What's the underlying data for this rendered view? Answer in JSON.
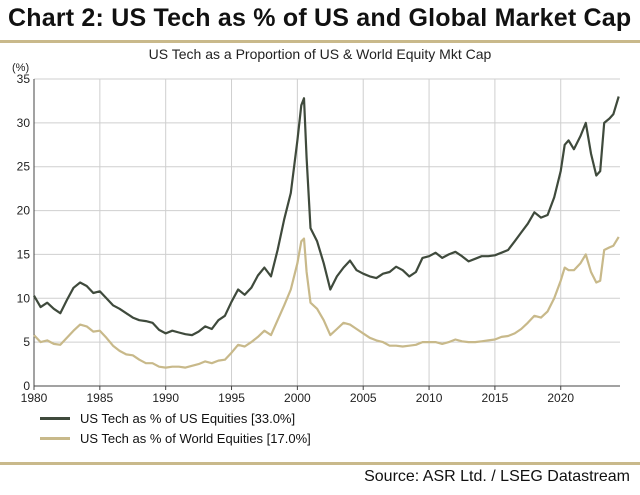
{
  "header": {
    "title": "Chart 2: US Tech as % of US and Global Market Cap",
    "subtitle": "US Tech as a Proportion of US & World Equity Mkt Cap",
    "source": "Source: ASR Ltd.  / LSEG Datastream"
  },
  "colors": {
    "us": "#3f4a3c",
    "world": "#c8b98a",
    "rule": "#c9b98b"
  },
  "chart_data": {
    "type": "line",
    "title": "US Tech as a Proportion of US & World Equity Mkt Cap",
    "ylabel": "(%)",
    "xlim": [
      1980,
      2024.5
    ],
    "ylim": [
      0,
      35
    ],
    "xticks": [
      1980,
      1985,
      1990,
      1995,
      2000,
      2005,
      2010,
      2015,
      2020
    ],
    "yticks": [
      0,
      5,
      10,
      15,
      20,
      25,
      30,
      35
    ],
    "grid": true,
    "legend": "bottom-left",
    "series": [
      {
        "name": "US Tech as % of US Equities [33.0%]",
        "x": [
          1980.0,
          1980.5,
          1981.0,
          1981.5,
          1982.0,
          1982.5,
          1983.0,
          1983.5,
          1984.0,
          1984.5,
          1985.0,
          1985.5,
          1986.0,
          1986.5,
          1987.0,
          1987.5,
          1988.0,
          1988.5,
          1989.0,
          1989.5,
          1990.0,
          1990.5,
          1991.0,
          1991.5,
          1992.0,
          1992.5,
          1993.0,
          1993.5,
          1994.0,
          1994.5,
          1995.0,
          1995.5,
          1996.0,
          1996.5,
          1997.0,
          1997.5,
          1998.0,
          1998.5,
          1999.0,
          1999.5,
          2000.0,
          2000.3,
          2000.5,
          2000.7,
          2001.0,
          2001.5,
          2002.0,
          2002.5,
          2003.0,
          2003.5,
          2004.0,
          2004.5,
          2005.0,
          2005.5,
          2006.0,
          2006.5,
          2007.0,
          2007.5,
          2008.0,
          2008.5,
          2009.0,
          2009.5,
          2010.0,
          2010.5,
          2011.0,
          2011.5,
          2012.0,
          2012.5,
          2013.0,
          2013.5,
          2014.0,
          2014.5,
          2015.0,
          2015.5,
          2016.0,
          2016.5,
          2017.0,
          2017.5,
          2018.0,
          2018.5,
          2019.0,
          2019.5,
          2020.0,
          2020.3,
          2020.6,
          2021.0,
          2021.5,
          2021.9,
          2022.3,
          2022.7,
          2023.0,
          2023.3,
          2023.7,
          2024.0,
          2024.4
        ],
        "values": [
          10.3,
          9.0,
          9.5,
          8.8,
          8.3,
          9.8,
          11.2,
          11.8,
          11.4,
          10.6,
          10.8,
          10.0,
          9.2,
          8.8,
          8.3,
          7.8,
          7.5,
          7.4,
          7.2,
          6.4,
          6.0,
          6.3,
          6.1,
          5.9,
          5.8,
          6.2,
          6.8,
          6.5,
          7.5,
          8.0,
          9.6,
          11.0,
          10.4,
          11.2,
          12.6,
          13.5,
          12.5,
          15.5,
          19.0,
          22.0,
          28.0,
          32.0,
          32.8,
          26.0,
          18.0,
          16.5,
          14.0,
          11.0,
          12.5,
          13.5,
          14.3,
          13.2,
          12.8,
          12.5,
          12.3,
          12.8,
          13.0,
          13.6,
          13.2,
          12.5,
          13.0,
          14.6,
          14.8,
          15.2,
          14.6,
          15.0,
          15.3,
          14.8,
          14.2,
          14.5,
          14.8,
          14.8,
          14.9,
          15.2,
          15.5,
          16.5,
          17.5,
          18.5,
          19.8,
          19.2,
          19.5,
          21.5,
          24.5,
          27.5,
          28.0,
          27.0,
          28.5,
          30.0,
          26.5,
          24.0,
          24.5,
          30.0,
          30.5,
          31.0,
          33.0
        ]
      },
      {
        "name": "US Tech as % of World Equities [17.0%]",
        "x": [
          1980.0,
          1980.5,
          1981.0,
          1981.5,
          1982.0,
          1982.5,
          1983.0,
          1983.5,
          1984.0,
          1984.5,
          1985.0,
          1985.5,
          1986.0,
          1986.5,
          1987.0,
          1987.5,
          1988.0,
          1988.5,
          1989.0,
          1989.5,
          1990.0,
          1990.5,
          1991.0,
          1991.5,
          1992.0,
          1992.5,
          1993.0,
          1993.5,
          1994.0,
          1994.5,
          1995.0,
          1995.5,
          1996.0,
          1996.5,
          1997.0,
          1997.5,
          1998.0,
          1998.5,
          1999.0,
          1999.5,
          2000.0,
          2000.3,
          2000.5,
          2000.7,
          2001.0,
          2001.5,
          2002.0,
          2002.5,
          2003.0,
          2003.5,
          2004.0,
          2004.5,
          2005.0,
          2005.5,
          2006.0,
          2006.5,
          2007.0,
          2007.5,
          2008.0,
          2008.5,
          2009.0,
          2009.5,
          2010.0,
          2010.5,
          2011.0,
          2011.5,
          2012.0,
          2012.5,
          2013.0,
          2013.5,
          2014.0,
          2014.5,
          2015.0,
          2015.5,
          2016.0,
          2016.5,
          2017.0,
          2017.5,
          2018.0,
          2018.5,
          2019.0,
          2019.5,
          2020.0,
          2020.3,
          2020.6,
          2021.0,
          2021.5,
          2021.9,
          2022.3,
          2022.7,
          2023.0,
          2023.3,
          2023.7,
          2024.0,
          2024.4
        ],
        "values": [
          5.8,
          5.0,
          5.2,
          4.8,
          4.7,
          5.5,
          6.3,
          7.0,
          6.8,
          6.2,
          6.3,
          5.5,
          4.6,
          4.0,
          3.6,
          3.5,
          3.0,
          2.6,
          2.6,
          2.2,
          2.1,
          2.2,
          2.2,
          2.1,
          2.3,
          2.5,
          2.8,
          2.6,
          2.9,
          3.0,
          3.8,
          4.7,
          4.5,
          5.0,
          5.6,
          6.3,
          5.8,
          7.5,
          9.2,
          11.0,
          14.0,
          16.5,
          16.8,
          13.0,
          9.5,
          8.8,
          7.5,
          5.8,
          6.5,
          7.2,
          7.0,
          6.5,
          6.0,
          5.5,
          5.2,
          5.0,
          4.6,
          4.6,
          4.5,
          4.6,
          4.7,
          5.0,
          5.0,
          5.0,
          4.8,
          5.0,
          5.3,
          5.1,
          5.0,
          5.0,
          5.1,
          5.2,
          5.3,
          5.6,
          5.7,
          6.0,
          6.5,
          7.2,
          8.0,
          7.8,
          8.5,
          10.0,
          12.0,
          13.5,
          13.2,
          13.2,
          14.0,
          15.0,
          13.0,
          11.8,
          12.0,
          15.5,
          15.8,
          16.0,
          17.0
        ]
      }
    ]
  }
}
